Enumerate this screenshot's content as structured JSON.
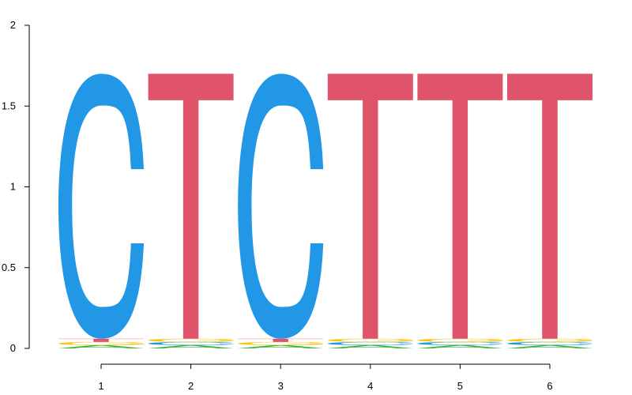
{
  "colors": {
    "A": "#3cb43c",
    "C": "#2297e6",
    "G": "#f5c710",
    "T": "#df536b",
    "axis": "#000000"
  },
  "chart_data": {
    "type": "sequence-logo",
    "title": "",
    "xlabel": "",
    "ylabel": "",
    "ylim": [
      0,
      2
    ],
    "y_ticks": [
      0,
      0.5,
      1,
      1.5,
      2
    ],
    "y_tick_labels": [
      "0",
      "0.5",
      "1",
      "1.5",
      "2"
    ],
    "x_ticks": [
      1,
      2,
      3,
      4,
      5,
      6
    ],
    "x_tick_labels": [
      "1",
      "2",
      "3",
      "4",
      "5",
      "6"
    ],
    "consensus": "CTCTTT",
    "positions": [
      {
        "position": 1,
        "letters": [
          {
            "letter": "A",
            "height": 0.02
          },
          {
            "letter": "G",
            "height": 0.02
          },
          {
            "letter": "T",
            "height": 0.02
          },
          {
            "letter": "C",
            "height": 1.64
          }
        ]
      },
      {
        "position": 2,
        "letters": [
          {
            "letter": "A",
            "height": 0.02
          },
          {
            "letter": "C",
            "height": 0.02
          },
          {
            "letter": "G",
            "height": 0.02
          },
          {
            "letter": "T",
            "height": 1.64
          }
        ]
      },
      {
        "position": 3,
        "letters": [
          {
            "letter": "A",
            "height": 0.02
          },
          {
            "letter": "G",
            "height": 0.02
          },
          {
            "letter": "T",
            "height": 0.02
          },
          {
            "letter": "C",
            "height": 1.64
          }
        ]
      },
      {
        "position": 4,
        "letters": [
          {
            "letter": "A",
            "height": 0.02
          },
          {
            "letter": "C",
            "height": 0.02
          },
          {
            "letter": "G",
            "height": 0.02
          },
          {
            "letter": "T",
            "height": 1.64
          }
        ]
      },
      {
        "position": 5,
        "letters": [
          {
            "letter": "A",
            "height": 0.02
          },
          {
            "letter": "C",
            "height": 0.02
          },
          {
            "letter": "G",
            "height": 0.02
          },
          {
            "letter": "T",
            "height": 1.64
          }
        ]
      },
      {
        "position": 6,
        "letters": [
          {
            "letter": "A",
            "height": 0.02
          },
          {
            "letter": "C",
            "height": 0.02
          },
          {
            "letter": "G",
            "height": 0.02
          },
          {
            "letter": "T",
            "height": 1.64
          }
        ]
      }
    ]
  }
}
